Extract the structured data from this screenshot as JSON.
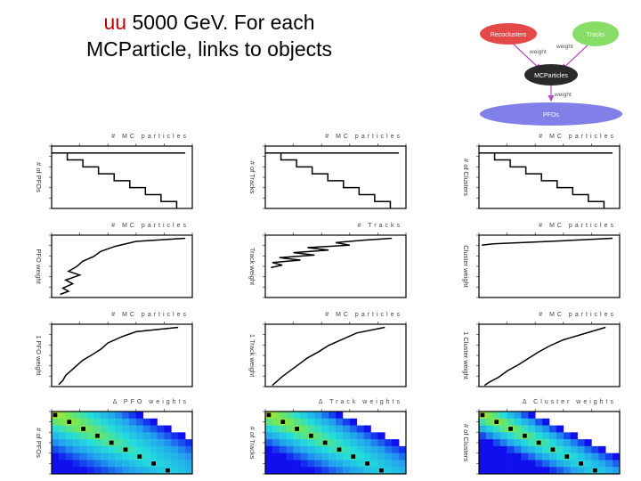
{
  "slide": {
    "title_accent": "uu",
    "title_rest_line1": " 5000 GeV. For each",
    "title_line2": "MCParticle, links to objects"
  },
  "diagram": {
    "nodes": [
      {
        "label": "Recoclusters",
        "color": "#e54848"
      },
      {
        "label": "Tracks",
        "color": "#88dd66"
      },
      {
        "label": "MCParticles",
        "color": "#2a2a2a"
      },
      {
        "label": "PFOs",
        "color": "#8080e8"
      }
    ],
    "edge_labels": [
      "weight",
      "weight",
      "weight"
    ]
  },
  "colors": {
    "heat_low": "#1010ee",
    "heat_high": "#dd1010",
    "heat_mid": "#22dddd"
  },
  "panels": {
    "col_titles": [
      [
        "# MC particles",
        "# MC particles",
        "# MC particles",
        "Δ PFO weights"
      ],
      [
        "# MC particles",
        "# Tracks",
        "# MC particles",
        "Δ Track weights"
      ],
      [
        "# MC particles",
        "# Clusters",
        "# MC particles",
        "Δ Cluster weights"
      ]
    ],
    "y_labels": [
      [
        "# of PFOs",
        "PFO weight",
        "1 PFO weight",
        "# of PFOs"
      ],
      [
        "# of Tracks",
        "Track weight",
        "1 Track weight",
        "# of Tracks"
      ],
      [
        "# of Clusters",
        "Cluster weight",
        "1 Cluster weight",
        "# of Clusters"
      ]
    ]
  },
  "chart_data": [
    {
      "type": "line",
      "id": "c0r0",
      "title": "# MC particles",
      "ylabel": "# of PFOs",
      "x": [
        0,
        1,
        2,
        3,
        4,
        5,
        6,
        7,
        8
      ],
      "y": [
        8,
        7,
        6,
        5,
        4,
        3,
        2,
        1,
        0
      ],
      "xlim": [
        0,
        9
      ],
      "ylim": [
        0,
        9
      ]
    },
    {
      "type": "line",
      "id": "c1r0",
      "title": "# MC particles",
      "ylabel": "# of Tracks",
      "x": [
        0,
        1,
        2,
        3,
        4,
        5,
        6,
        7,
        8
      ],
      "y": [
        8,
        7,
        6,
        5,
        4,
        3,
        2,
        1,
        0
      ],
      "xlim": [
        0,
        9
      ],
      "ylim": [
        0,
        9
      ]
    },
    {
      "type": "line",
      "id": "c2r0",
      "title": "# MC particles",
      "ylabel": "# of Clusters",
      "x": [
        0,
        1,
        2,
        3,
        4,
        5,
        6,
        7,
        8
      ],
      "y": [
        8,
        7,
        6,
        5,
        4,
        3,
        2,
        1,
        0
      ],
      "xlim": [
        0,
        9
      ],
      "ylim": [
        0,
        9
      ]
    },
    {
      "type": "line",
      "id": "c0r1",
      "title": "# MC particles",
      "ylabel": "PFO weight",
      "x": [
        0.95,
        0.6,
        0.45,
        0.35,
        0.3,
        0.22,
        0.18,
        0.12,
        0.2,
        0.1,
        0.15,
        0.08,
        0.12,
        0.06
      ],
      "y": [
        0.95,
        0.9,
        0.82,
        0.74,
        0.66,
        0.58,
        0.5,
        0.42,
        0.36,
        0.28,
        0.22,
        0.15,
        0.1,
        0.05
      ],
      "xlim": [
        0,
        1
      ],
      "ylim": [
        0,
        1
      ]
    },
    {
      "type": "line",
      "id": "c1r1",
      "title": "# Tracks",
      "ylabel": "Track weight",
      "x": [
        0.9,
        0.7,
        0.5,
        0.6,
        0.3,
        0.45,
        0.2,
        0.35,
        0.1,
        0.25,
        0.05,
        0.12,
        0.04
      ],
      "y": [
        0.95,
        0.92,
        0.88,
        0.84,
        0.8,
        0.76,
        0.72,
        0.68,
        0.64,
        0.6,
        0.56,
        0.52,
        0.48
      ],
      "xlim": [
        0,
        1
      ],
      "ylim": [
        0,
        1
      ]
    },
    {
      "type": "line",
      "id": "c2r1",
      "title": "# MC particles",
      "ylabel": "Cluster weight",
      "x": [
        0.95,
        0.5,
        0.1,
        0.02
      ],
      "y": [
        0.95,
        0.9,
        0.86,
        0.84
      ],
      "xlim": [
        0,
        1
      ],
      "ylim": [
        0,
        1
      ]
    },
    {
      "type": "line",
      "id": "c0r2",
      "title": "# MC particles",
      "ylabel": "1 PFO weight",
      "x": [
        0.9,
        0.6,
        0.5,
        0.4,
        0.35,
        0.28,
        0.22,
        0.18,
        0.14,
        0.1,
        0.08,
        0.05
      ],
      "y": [
        0.95,
        0.88,
        0.8,
        0.7,
        0.6,
        0.5,
        0.42,
        0.34,
        0.26,
        0.18,
        0.1,
        0.03
      ],
      "xlim": [
        0,
        1
      ],
      "ylim": [
        0,
        1
      ]
    },
    {
      "type": "line",
      "id": "c1r2",
      "title": "# MC particles",
      "ylabel": "1 Track weight",
      "x": [
        0.85,
        0.65,
        0.55,
        0.45,
        0.38,
        0.3,
        0.24,
        0.18,
        0.12,
        0.08,
        0.05
      ],
      "y": [
        0.95,
        0.86,
        0.76,
        0.66,
        0.56,
        0.46,
        0.36,
        0.26,
        0.16,
        0.08,
        0.02
      ],
      "xlim": [
        0,
        1
      ],
      "ylim": [
        0,
        1
      ]
    },
    {
      "type": "line",
      "id": "c2r2",
      "title": "# MC particles",
      "ylabel": "1 Cluster weight",
      "x": [
        0.9,
        0.75,
        0.6,
        0.5,
        0.42,
        0.35,
        0.28,
        0.2,
        0.14,
        0.08,
        0.04
      ],
      "y": [
        0.95,
        0.85,
        0.75,
        0.65,
        0.55,
        0.45,
        0.35,
        0.25,
        0.15,
        0.08,
        0.02
      ],
      "xlim": [
        0,
        1
      ],
      "ylim": [
        0,
        1
      ]
    },
    {
      "type": "heatmap",
      "id": "c0r3",
      "title": "Δ PFO weights",
      "ylabel": "# of PFOs",
      "spread": 0.55
    },
    {
      "type": "heatmap",
      "id": "c1r3",
      "title": "Δ Track weights",
      "ylabel": "# of Tracks",
      "spread": 0.45
    },
    {
      "type": "heatmap",
      "id": "c2r3",
      "title": "Δ Cluster weights",
      "ylabel": "# of Clusters",
      "spread": 0.3
    }
  ]
}
